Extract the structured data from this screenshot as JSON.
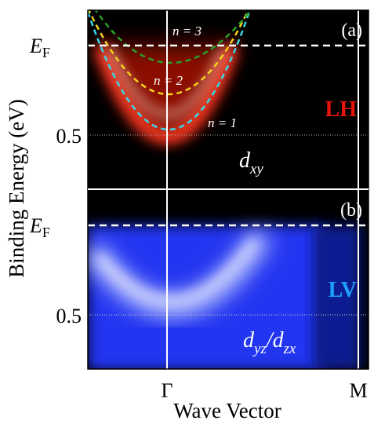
{
  "figure": {
    "y_label": "Binding Energy (eV)",
    "x_label": "Wave Vector",
    "x_ticks": [
      "Γ",
      "M"
    ],
    "panels": [
      {
        "label": "(a)",
        "polarization": "LH",
        "y_ticks": [
          {
            "main": "E",
            "sub": "F"
          },
          "0.5"
        ],
        "orbital": [
          "d",
          "xy"
        ],
        "subbands": [
          "n = 3",
          "n = 2",
          "n = 1"
        ]
      },
      {
        "label": "(b)",
        "polarization": "LV",
        "y_ticks": [
          {
            "main": "E",
            "sub": "F"
          },
          "0.5"
        ],
        "orbital": [
          "d",
          "yz",
          "/d",
          "zx"
        ]
      }
    ]
  }
}
